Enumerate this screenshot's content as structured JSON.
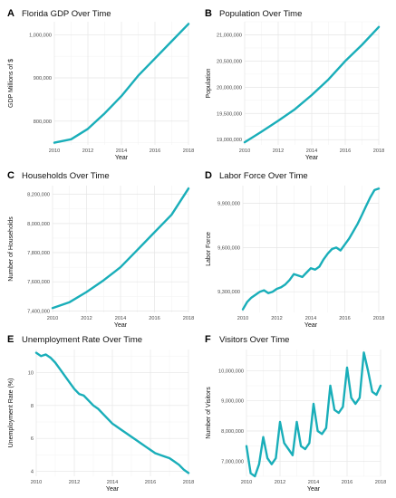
{
  "colors": {
    "series": "#19aeb9"
  },
  "panels": [
    {
      "label": "A",
      "title": "Florida GDP Over Time",
      "xlabel": "Year",
      "ylabel": "GDP Millions of $",
      "xticks": [
        "2010",
        "2012",
        "2014",
        "2016",
        "2018"
      ],
      "yticks": [
        "800,000",
        "900,000",
        "1,000,000"
      ]
    },
    {
      "label": "B",
      "title": "Population Over Time",
      "xlabel": "Year",
      "ylabel": "Population",
      "xticks": [
        "2010",
        "2012",
        "2014",
        "2016",
        "2018"
      ],
      "yticks": [
        "19,000,000",
        "19,500,000",
        "20,000,000",
        "20,500,000",
        "21,000,000"
      ]
    },
    {
      "label": "C",
      "title": "Households Over Time",
      "xlabel": "Year",
      "ylabel": "Number of Households",
      "xticks": [
        "2010",
        "2012",
        "2014",
        "2016",
        "2018"
      ],
      "yticks": [
        "7,400,000",
        "7,600,000",
        "7,800,000",
        "8,000,000",
        "8,200,000"
      ]
    },
    {
      "label": "D",
      "title": "Labor Force Over Time",
      "xlabel": "Year",
      "ylabel": "Labor Force",
      "xticks": [
        "2010",
        "2012",
        "2014",
        "2016",
        "2018"
      ],
      "yticks": [
        "9,300,000",
        "9,600,000",
        "9,900,000"
      ]
    },
    {
      "label": "E",
      "title": "Unemployment Rate Over Time",
      "xlabel": "Year",
      "ylabel": "Unemployment Rate (%)",
      "xticks": [
        "2010",
        "2012",
        "2014",
        "2016",
        "2018"
      ],
      "yticks": [
        "4",
        "6",
        "8",
        "10"
      ]
    },
    {
      "label": "F",
      "title": "Visitors Over Time",
      "xlabel": "Year",
      "ylabel": "Number of Visitors",
      "xticks": [
        "2010",
        "2012",
        "2014",
        "2016",
        "2018"
      ],
      "yticks": [
        "7,000,000",
        "8,000,000",
        "9,000,000",
        "10,000,000"
      ]
    }
  ],
  "chart_data": [
    {
      "type": "line",
      "title": "Florida GDP Over Time",
      "xlabel": "Year",
      "ylabel": "GDP Millions of $",
      "xlim": [
        2010,
        2018
      ],
      "ylim": [
        745000,
        1030000
      ],
      "yticks": [
        800000,
        900000,
        1000000
      ],
      "x": [
        2010,
        2011,
        2012,
        2013,
        2014,
        2015,
        2016,
        2017,
        2018
      ],
      "y": [
        750000,
        758000,
        782000,
        818000,
        858000,
        905000,
        945000,
        985000,
        1025000
      ]
    },
    {
      "type": "line",
      "title": "Population Over Time",
      "xlabel": "Year",
      "ylabel": "Population",
      "xlim": [
        2010,
        2018
      ],
      "ylim": [
        18900000,
        21250000
      ],
      "yticks": [
        19000000,
        19500000,
        20000000,
        20500000,
        21000000
      ],
      "x": [
        2010,
        2011,
        2012,
        2013,
        2014,
        2015,
        2016,
        2017,
        2018
      ],
      "y": [
        18950000,
        19150000,
        19360000,
        19580000,
        19850000,
        20150000,
        20500000,
        20810000,
        21150000
      ]
    },
    {
      "type": "line",
      "title": "Households Over Time",
      "xlabel": "Year",
      "ylabel": "Number of Households",
      "xlim": [
        2010,
        2018
      ],
      "ylim": [
        7390000,
        8260000
      ],
      "yticks": [
        7400000,
        7600000,
        7800000,
        8000000,
        8200000
      ],
      "x": [
        2010,
        2011,
        2012,
        2013,
        2014,
        2015,
        2016,
        2017,
        2018
      ],
      "y": [
        7420000,
        7460000,
        7530000,
        7610000,
        7700000,
        7820000,
        7940000,
        8060000,
        8240000
      ]
    },
    {
      "type": "line",
      "title": "Labor Force Over Time",
      "xlabel": "Year",
      "ylabel": "Labor Force",
      "xlim": [
        2010,
        2018
      ],
      "ylim": [
        9160000,
        10020000
      ],
      "yticks": [
        9300000,
        9600000,
        9900000
      ],
      "x": [
        2010.0,
        2010.25,
        2010.5,
        2010.75,
        2011.0,
        2011.25,
        2011.5,
        2011.75,
        2012.0,
        2012.25,
        2012.5,
        2012.75,
        2013.0,
        2013.25,
        2013.5,
        2013.75,
        2014.0,
        2014.25,
        2014.5,
        2014.75,
        2015.0,
        2015.25,
        2015.5,
        2015.75,
        2016.0,
        2016.25,
        2016.5,
        2016.75,
        2017.0,
        2017.25,
        2017.5,
        2017.75,
        2018.0
      ],
      "y": [
        9180000,
        9230000,
        9260000,
        9280000,
        9300000,
        9310000,
        9290000,
        9300000,
        9320000,
        9330000,
        9350000,
        9380000,
        9420000,
        9410000,
        9400000,
        9430000,
        9460000,
        9450000,
        9470000,
        9520000,
        9560000,
        9590000,
        9600000,
        9580000,
        9620000,
        9660000,
        9710000,
        9760000,
        9820000,
        9880000,
        9940000,
        9990000,
        10000000
      ]
    },
    {
      "type": "line",
      "title": "Unemployment Rate Over Time",
      "xlabel": "Year",
      "ylabel": "Unemployment Rate (%)",
      "xlim": [
        2010,
        2018
      ],
      "ylim": [
        3.7,
        11.4
      ],
      "yticks": [
        4,
        6,
        8,
        10
      ],
      "x": [
        2010.0,
        2010.25,
        2010.5,
        2010.75,
        2011.0,
        2011.25,
        2011.5,
        2011.75,
        2012.0,
        2012.25,
        2012.5,
        2012.75,
        2013.0,
        2013.25,
        2013.5,
        2013.75,
        2014.0,
        2014.25,
        2014.5,
        2014.75,
        2015.0,
        2015.25,
        2015.5,
        2015.75,
        2016.0,
        2016.25,
        2016.5,
        2016.75,
        2017.0,
        2017.25,
        2017.5,
        2017.75,
        2018.0
      ],
      "y": [
        11.2,
        11.0,
        11.1,
        10.9,
        10.6,
        10.2,
        9.8,
        9.4,
        9.0,
        8.7,
        8.6,
        8.3,
        8.0,
        7.8,
        7.5,
        7.2,
        6.9,
        6.7,
        6.5,
        6.3,
        6.1,
        5.9,
        5.7,
        5.5,
        5.3,
        5.1,
        5.0,
        4.9,
        4.8,
        4.6,
        4.4,
        4.1,
        3.9
      ]
    },
    {
      "type": "line",
      "title": "Visitors Over Time",
      "xlabel": "Year",
      "ylabel": "Number of Visitors",
      "xlim": [
        2010,
        2018
      ],
      "ylim": [
        6500000,
        10700000
      ],
      "yticks": [
        7000000,
        8000000,
        9000000,
        10000000
      ],
      "x": [
        2010.0,
        2010.25,
        2010.5,
        2010.75,
        2011.0,
        2011.25,
        2011.5,
        2011.75,
        2012.0,
        2012.25,
        2012.5,
        2012.75,
        2013.0,
        2013.25,
        2013.5,
        2013.75,
        2014.0,
        2014.25,
        2014.5,
        2014.75,
        2015.0,
        2015.25,
        2015.5,
        2015.75,
        2016.0,
        2016.25,
        2016.5,
        2016.75,
        2017.0,
        2017.25,
        2017.5,
        2017.75,
        2018.0
      ],
      "y": [
        7500000,
        6600000,
        6500000,
        6900000,
        7800000,
        7100000,
        6900000,
        7100000,
        8300000,
        7600000,
        7400000,
        7200000,
        8300000,
        7500000,
        7400000,
        7600000,
        8900000,
        8000000,
        7900000,
        8100000,
        9500000,
        8700000,
        8600000,
        8800000,
        10100000,
        9100000,
        8900000,
        9100000,
        10600000,
        10000000,
        9300000,
        9200000,
        9500000
      ]
    }
  ]
}
